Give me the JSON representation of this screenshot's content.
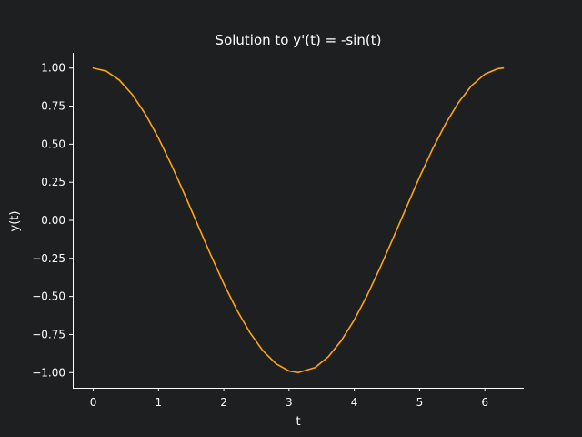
{
  "colors": {
    "background": "#1e1f21",
    "axis": "#ffffff",
    "text": "#ffffff",
    "line": "#ffa513"
  },
  "chart_data": {
    "type": "line",
    "title": "Solution to y'(t) = -sin(t)",
    "xlabel": "t",
    "ylabel": "y(t)",
    "xlim": [
      -0.314,
      6.597
    ],
    "ylim": [
      -1.1,
      1.1
    ],
    "x_ticks": [
      0,
      1,
      2,
      3,
      4,
      5,
      6
    ],
    "x_tick_labels": [
      "0",
      "1",
      "2",
      "3",
      "4",
      "5",
      "6"
    ],
    "y_ticks": [
      -1.0,
      -0.75,
      -0.5,
      -0.25,
      0.0,
      0.25,
      0.5,
      0.75,
      1.0
    ],
    "y_tick_labels": [
      "−1.00",
      "−0.75",
      "−0.50",
      "−0.25",
      "0.00",
      "0.25",
      "0.50",
      "0.75",
      "1.00"
    ],
    "grid": false,
    "series": [
      {
        "color": "#ffa513",
        "x": [
          0,
          0.2,
          0.4,
          0.6,
          0.8,
          1.0,
          1.2,
          1.4,
          1.6,
          1.8,
          2.0,
          2.2,
          2.4,
          2.6,
          2.8,
          3.0,
          3.1416,
          3.4,
          3.6,
          3.8,
          4.0,
          4.2,
          4.4,
          4.6,
          4.8,
          5.0,
          5.2,
          5.4,
          5.6,
          5.8,
          6.0,
          6.2,
          6.2832
        ],
        "y": [
          1.0,
          0.98,
          0.921,
          0.825,
          0.697,
          0.54,
          0.362,
          0.17,
          -0.029,
          -0.227,
          -0.416,
          -0.589,
          -0.737,
          -0.857,
          -0.942,
          -0.99,
          -1.0,
          -0.967,
          -0.897,
          -0.791,
          -0.654,
          -0.49,
          -0.307,
          -0.112,
          0.087,
          0.284,
          0.469,
          0.635,
          0.776,
          0.886,
          0.96,
          0.996,
          1.0
        ]
      }
    ]
  }
}
